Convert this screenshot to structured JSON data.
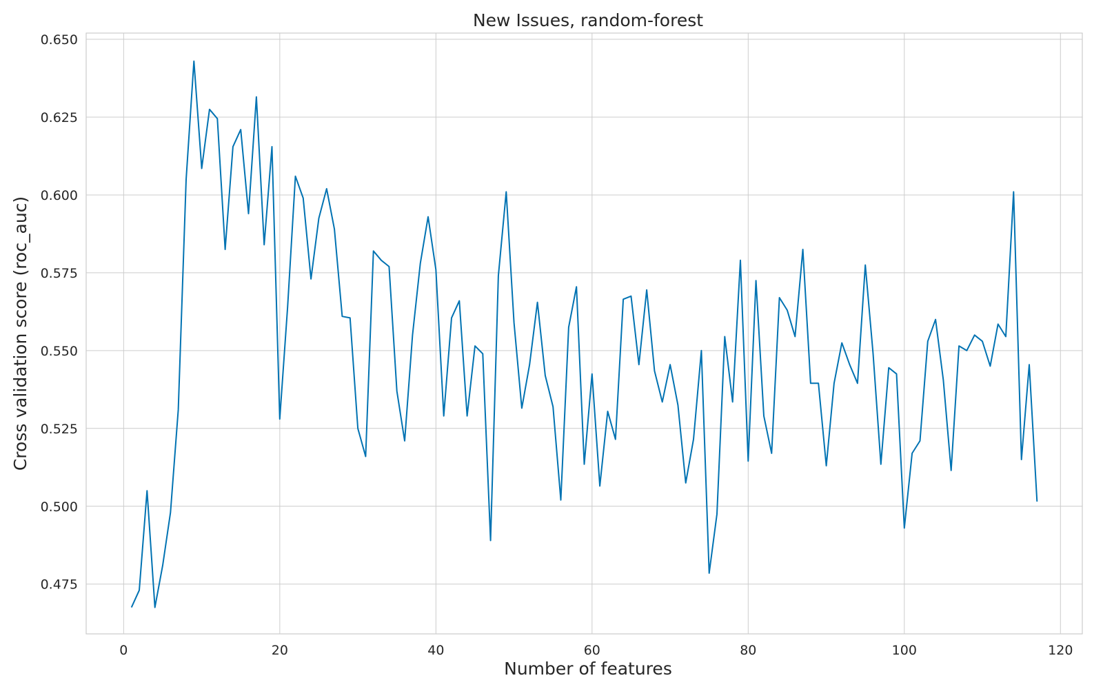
{
  "chart_data": {
    "type": "line",
    "title": "New Issues, random-forest",
    "xlabel": "Number of features",
    "ylabel": "Cross validation score (roc_auc)",
    "xlim": [
      -4.8,
      122.8
    ],
    "ylim": [
      0.459,
      0.652
    ],
    "xticks": [
      0,
      20,
      40,
      60,
      80,
      100,
      120
    ],
    "xtick_labels": [
      "0",
      "20",
      "40",
      "60",
      "80",
      "100",
      "120"
    ],
    "yticks": [
      0.475,
      0.5,
      0.525,
      0.55,
      0.575,
      0.6,
      0.625,
      0.65
    ],
    "ytick_labels": [
      "0.475",
      "0.500",
      "0.525",
      "0.550",
      "0.575",
      "0.600",
      "0.625",
      "0.650"
    ],
    "grid": true,
    "line_color": "#0072b2",
    "series": [
      {
        "x": [
          1,
          2,
          3,
          4,
          5,
          6,
          7,
          8,
          9,
          10,
          11,
          12,
          13,
          14,
          15,
          16,
          17,
          18,
          19,
          20,
          21,
          22,
          23,
          24,
          25,
          26,
          27,
          28,
          29,
          30,
          31,
          32,
          33,
          34,
          35,
          36,
          37,
          38,
          39,
          40,
          41,
          42,
          43,
          44,
          45,
          46,
          47,
          48,
          49,
          50,
          51,
          52,
          53,
          54,
          55,
          56,
          57,
          58,
          59,
          60,
          61,
          62,
          63,
          64,
          65,
          66,
          67,
          68,
          69,
          70,
          71,
          72,
          73,
          74,
          75,
          76,
          77,
          78,
          79,
          80,
          81,
          82,
          83,
          84,
          85,
          86,
          87,
          88,
          89,
          90,
          91,
          92,
          93,
          94,
          95,
          96,
          97,
          98,
          99,
          100,
          101,
          102,
          103,
          104,
          105,
          106,
          107,
          108,
          109,
          110,
          111,
          112,
          113,
          114,
          115,
          116,
          117
        ],
        "values": [
          0.4675,
          0.473,
          0.505,
          0.4675,
          0.481,
          0.498,
          0.531,
          0.605,
          0.643,
          0.6085,
          0.6275,
          0.6245,
          0.5825,
          0.6155,
          0.621,
          0.594,
          0.6315,
          0.584,
          0.6155,
          0.528,
          0.564,
          0.606,
          0.599,
          0.573,
          0.5925,
          0.602,
          0.589,
          0.561,
          0.5605,
          0.525,
          0.516,
          0.582,
          0.579,
          0.577,
          0.537,
          0.521,
          0.555,
          0.578,
          0.593,
          0.576,
          0.529,
          0.5605,
          0.566,
          0.529,
          0.5515,
          0.549,
          0.489,
          0.574,
          0.601,
          0.559,
          0.5315,
          0.5455,
          0.5655,
          0.542,
          0.532,
          0.502,
          0.5575,
          0.5705,
          0.5135,
          0.5425,
          0.5065,
          0.5305,
          0.5215,
          0.5665,
          0.5675,
          0.5455,
          0.5695,
          0.5435,
          0.5335,
          0.5455,
          0.5325,
          0.5075,
          0.5215,
          0.55,
          0.4785,
          0.4975,
          0.5545,
          0.5335,
          0.579,
          0.5145,
          0.5725,
          0.529,
          0.517,
          0.567,
          0.563,
          0.5545,
          0.5825,
          0.5395,
          0.5395,
          0.513,
          0.5395,
          0.5525,
          0.5455,
          0.5395,
          0.5775,
          0.549,
          0.5135,
          0.5445,
          0.5425,
          0.493,
          0.517,
          0.521,
          0.553,
          0.56,
          0.5405,
          0.5115,
          0.5515,
          0.55,
          0.555,
          0.553,
          0.545,
          0.5585,
          0.5545,
          0.601,
          0.515,
          0.5455,
          0.5015
        ]
      }
    ]
  }
}
